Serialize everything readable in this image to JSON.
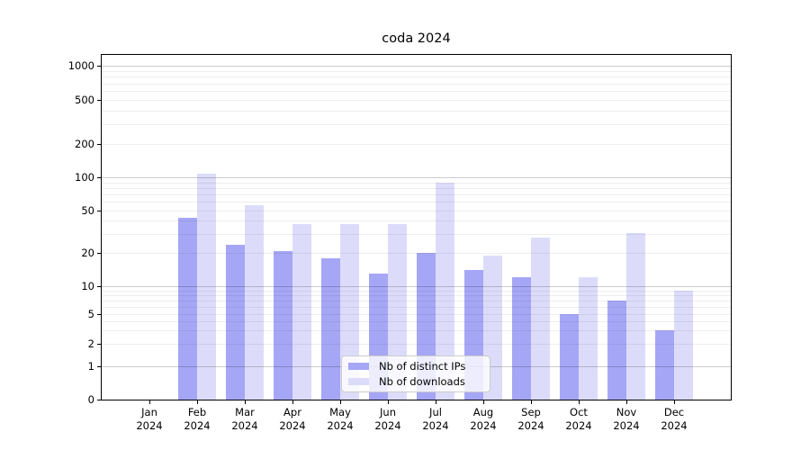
{
  "title": "coda 2024",
  "chart_data": {
    "type": "bar",
    "title": "coda 2024",
    "categories": [
      "Jan 2024",
      "Feb 2024",
      "Mar 2024",
      "Apr 2024",
      "May 2024",
      "Jun 2024",
      "Jul 2024",
      "Aug 2024",
      "Sep 2024",
      "Oct 2024",
      "Nov 2024",
      "Dec 2024"
    ],
    "series": [
      {
        "name": "Nb of distinct IPs",
        "color": "#a6a6f6",
        "values": [
          0,
          43,
          24,
          21,
          18,
          13,
          20,
          14,
          12,
          5,
          7,
          3
        ]
      },
      {
        "name": "Nb of downloads",
        "color": "#dcdcfa",
        "values": [
          0,
          108,
          56,
          37,
          37,
          37,
          89,
          19,
          28,
          12,
          31,
          9
        ]
      }
    ],
    "xlabel": "",
    "ylabel": "",
    "yticks": [
      0,
      1,
      2,
      5,
      10,
      20,
      50,
      100,
      200,
      500,
      1000
    ],
    "ylim": [
      0,
      1400
    ],
    "yscale": "symlog",
    "grid": true,
    "legend_position": "lower center"
  }
}
